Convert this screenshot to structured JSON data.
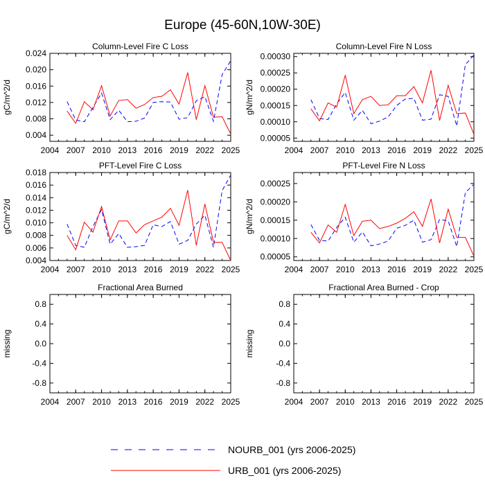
{
  "title": "Europe (45-60N,10W-30E)",
  "colors": {
    "nourb": "#0000ff",
    "urb": "#ff0000",
    "axis": "#000000"
  },
  "legend": [
    {
      "label": "NOURB_001 (yrs 2006-2025)",
      "style": "dashed",
      "color": "#0000ff"
    },
    {
      "label": "URB_001 (yrs 2006-2025)",
      "style": "solid",
      "color": "#ff0000"
    }
  ],
  "chart_data": [
    {
      "type": "line",
      "title": "Column-Level Fire C Loss",
      "ylabel": "gC/m^2/d",
      "xlabel": "",
      "xlim": [
        2004,
        2025
      ],
      "ylim": [
        0.0025,
        0.024
      ],
      "xticks": [
        "2004",
        "2007",
        "2010",
        "2013",
        "2016",
        "2019",
        "2022",
        "2025"
      ],
      "yticks": [
        "0.004",
        "0.008",
        "0.012",
        "0.016",
        "0.020",
        "0.024"
      ],
      "x": [
        2006,
        2007,
        2008,
        2009,
        2010,
        2011,
        2012,
        2013,
        2014,
        2015,
        2016,
        2017,
        2018,
        2019,
        2020,
        2021,
        2022,
        2023,
        2024,
        2025
      ],
      "series": [
        {
          "name": "NOURB_001",
          "values": [
            0.0122,
            0.0077,
            0.0073,
            0.0108,
            0.0143,
            0.0078,
            0.0101,
            0.0073,
            0.0074,
            0.0082,
            0.012,
            0.0122,
            0.0121,
            0.0079,
            0.0083,
            0.0124,
            0.0134,
            0.0074,
            0.0188,
            0.0222
          ]
        },
        {
          "name": "URB_001",
          "values": [
            0.0099,
            0.0069,
            0.0122,
            0.0102,
            0.0161,
            0.0087,
            0.0125,
            0.0127,
            0.0106,
            0.0115,
            0.0132,
            0.0135,
            0.0151,
            0.0116,
            0.0193,
            0.0078,
            0.0161,
            0.0084,
            0.0085,
            0.0043
          ]
        }
      ]
    },
    {
      "type": "line",
      "title": "Column-Level Fire N Loss",
      "ylabel": "gN/m^2/d",
      "xlabel": "",
      "xlim": [
        2004,
        2025
      ],
      "ylim": [
        4e-05,
        0.00031
      ],
      "xticks": [
        "2004",
        "2007",
        "2010",
        "2013",
        "2016",
        "2019",
        "2022",
        "2025"
      ],
      "yticks": [
        "0.00005",
        "0.00010",
        "0.00015",
        "0.00020",
        "0.00025",
        "0.00030"
      ],
      "x": [
        2006,
        2007,
        2008,
        2009,
        2010,
        2011,
        2012,
        2013,
        2014,
        2015,
        2016,
        2017,
        2018,
        2019,
        2020,
        2021,
        2022,
        2023,
        2024,
        2025
      ],
      "series": [
        {
          "name": "NOURB_001",
          "values": [
            0.000168,
            0.00011,
            0.000107,
            0.000155,
            0.00019,
            0.000105,
            0.000135,
            9.4e-05,
            0.000102,
            0.000115,
            0.00015,
            0.00017,
            0.000172,
            0.000105,
            0.000108,
            0.000183,
            0.000178,
            8.7e-05,
            0.000275,
            0.000305
          ]
        },
        {
          "name": "URB_001",
          "values": [
            0.00014,
            0.000103,
            0.000158,
            0.000145,
            0.000243,
            0.000125,
            0.000168,
            0.000178,
            0.00015,
            0.000152,
            0.00018,
            0.00018,
            0.000208,
            0.000158,
            0.000258,
            0.000104,
            0.000212,
            0.000125,
            0.000127,
            6.2e-05
          ]
        }
      ]
    },
    {
      "type": "line",
      "title": "PFT-Level Fire C Loss",
      "ylabel": "gC/m^2/d",
      "xlabel": "",
      "xlim": [
        2004,
        2025
      ],
      "ylim": [
        0.004,
        0.018
      ],
      "xticks": [
        "2004",
        "2007",
        "2010",
        "2013",
        "2016",
        "2019",
        "2022",
        "2025"
      ],
      "yticks": [
        "0.004",
        "0.006",
        "0.008",
        "0.010",
        "0.012",
        "0.014",
        "0.016",
        "0.018"
      ],
      "x": [
        2006,
        2007,
        2008,
        2009,
        2010,
        2011,
        2012,
        2013,
        2014,
        2015,
        2016,
        2017,
        2018,
        2019,
        2020,
        2021,
        2022,
        2023,
        2024,
        2025
      ],
      "series": [
        {
          "name": "NOURB_001",
          "values": [
            0.0098,
            0.0064,
            0.0061,
            0.0094,
            0.0121,
            0.0066,
            0.0083,
            0.0061,
            0.0062,
            0.0064,
            0.0097,
            0.0094,
            0.0102,
            0.0066,
            0.0072,
            0.0098,
            0.0112,
            0.0061,
            0.0151,
            0.0176
          ]
        },
        {
          "name": "URB_001",
          "values": [
            0.008,
            0.0057,
            0.0101,
            0.0085,
            0.0126,
            0.0073,
            0.0103,
            0.0103,
            0.0084,
            0.0097,
            0.0103,
            0.0109,
            0.0123,
            0.0096,
            0.0152,
            0.0064,
            0.013,
            0.0069,
            0.0069,
            0.004
          ]
        }
      ]
    },
    {
      "type": "line",
      "title": "PFT-Level Fire N Loss",
      "ylabel": "gN/m^2/d",
      "xlabel": "",
      "xlim": [
        2004,
        2025
      ],
      "ylim": [
        4e-05,
        0.00028
      ],
      "xticks": [
        "2004",
        "2007",
        "2010",
        "2013",
        "2016",
        "2019",
        "2022",
        "2025"
      ],
      "yticks": [
        "0.00005",
        "0.00010",
        "0.00015",
        "0.00020",
        "0.00025"
      ],
      "x": [
        2006,
        2007,
        2008,
        2009,
        2010,
        2011,
        2012,
        2013,
        2014,
        2015,
        2016,
        2017,
        2018,
        2019,
        2020,
        2021,
        2022,
        2023,
        2024,
        2025
      ],
      "series": [
        {
          "name": "NOURB_001",
          "values": [
            0.000138,
            9.5e-05,
            9.3e-05,
            0.00013,
            0.000158,
            9e-05,
            0.000118,
            8e-05,
            8.5e-05,
            9.3e-05,
            0.000128,
            0.000136,
            0.00015,
            9e-05,
            9.7e-05,
            0.000152,
            0.000148,
            7.8e-05,
            0.000225,
            0.000248
          ]
        },
        {
          "name": "URB_001",
          "values": [
            0.000117,
            8.8e-05,
            0.000137,
            0.000117,
            0.000193,
            0.000108,
            0.000147,
            0.00015,
            0.000127,
            0.000133,
            0.000142,
            0.000155,
            0.000173,
            0.000133,
            0.000208,
            8.8e-05,
            0.00018,
            0.000103,
            0.000103,
            5.2e-05
          ]
        }
      ]
    },
    {
      "type": "line",
      "title": "Fractional Area Burned",
      "ylabel": "missing",
      "xlabel": "",
      "xlim": [
        2004,
        2025
      ],
      "ylim": [
        -1,
        1
      ],
      "xticks": [
        "2004",
        "2007",
        "2010",
        "2013",
        "2016",
        "2019",
        "2022",
        "2025"
      ],
      "yticks": [
        "-0.8",
        "-0.4",
        "0.0",
        "0.4",
        "0.8"
      ],
      "x": [],
      "series": []
    },
    {
      "type": "line",
      "title": "Fractional Area Burned - Crop",
      "ylabel": "missing",
      "xlabel": "",
      "xlim": [
        2004,
        2025
      ],
      "ylim": [
        -1,
        1
      ],
      "xticks": [
        "2004",
        "2007",
        "2010",
        "2013",
        "2016",
        "2019",
        "2022",
        "2025"
      ],
      "yticks": [
        "-0.8",
        "-0.4",
        "0.0",
        "0.4",
        "0.8"
      ],
      "x": [],
      "series": []
    }
  ]
}
